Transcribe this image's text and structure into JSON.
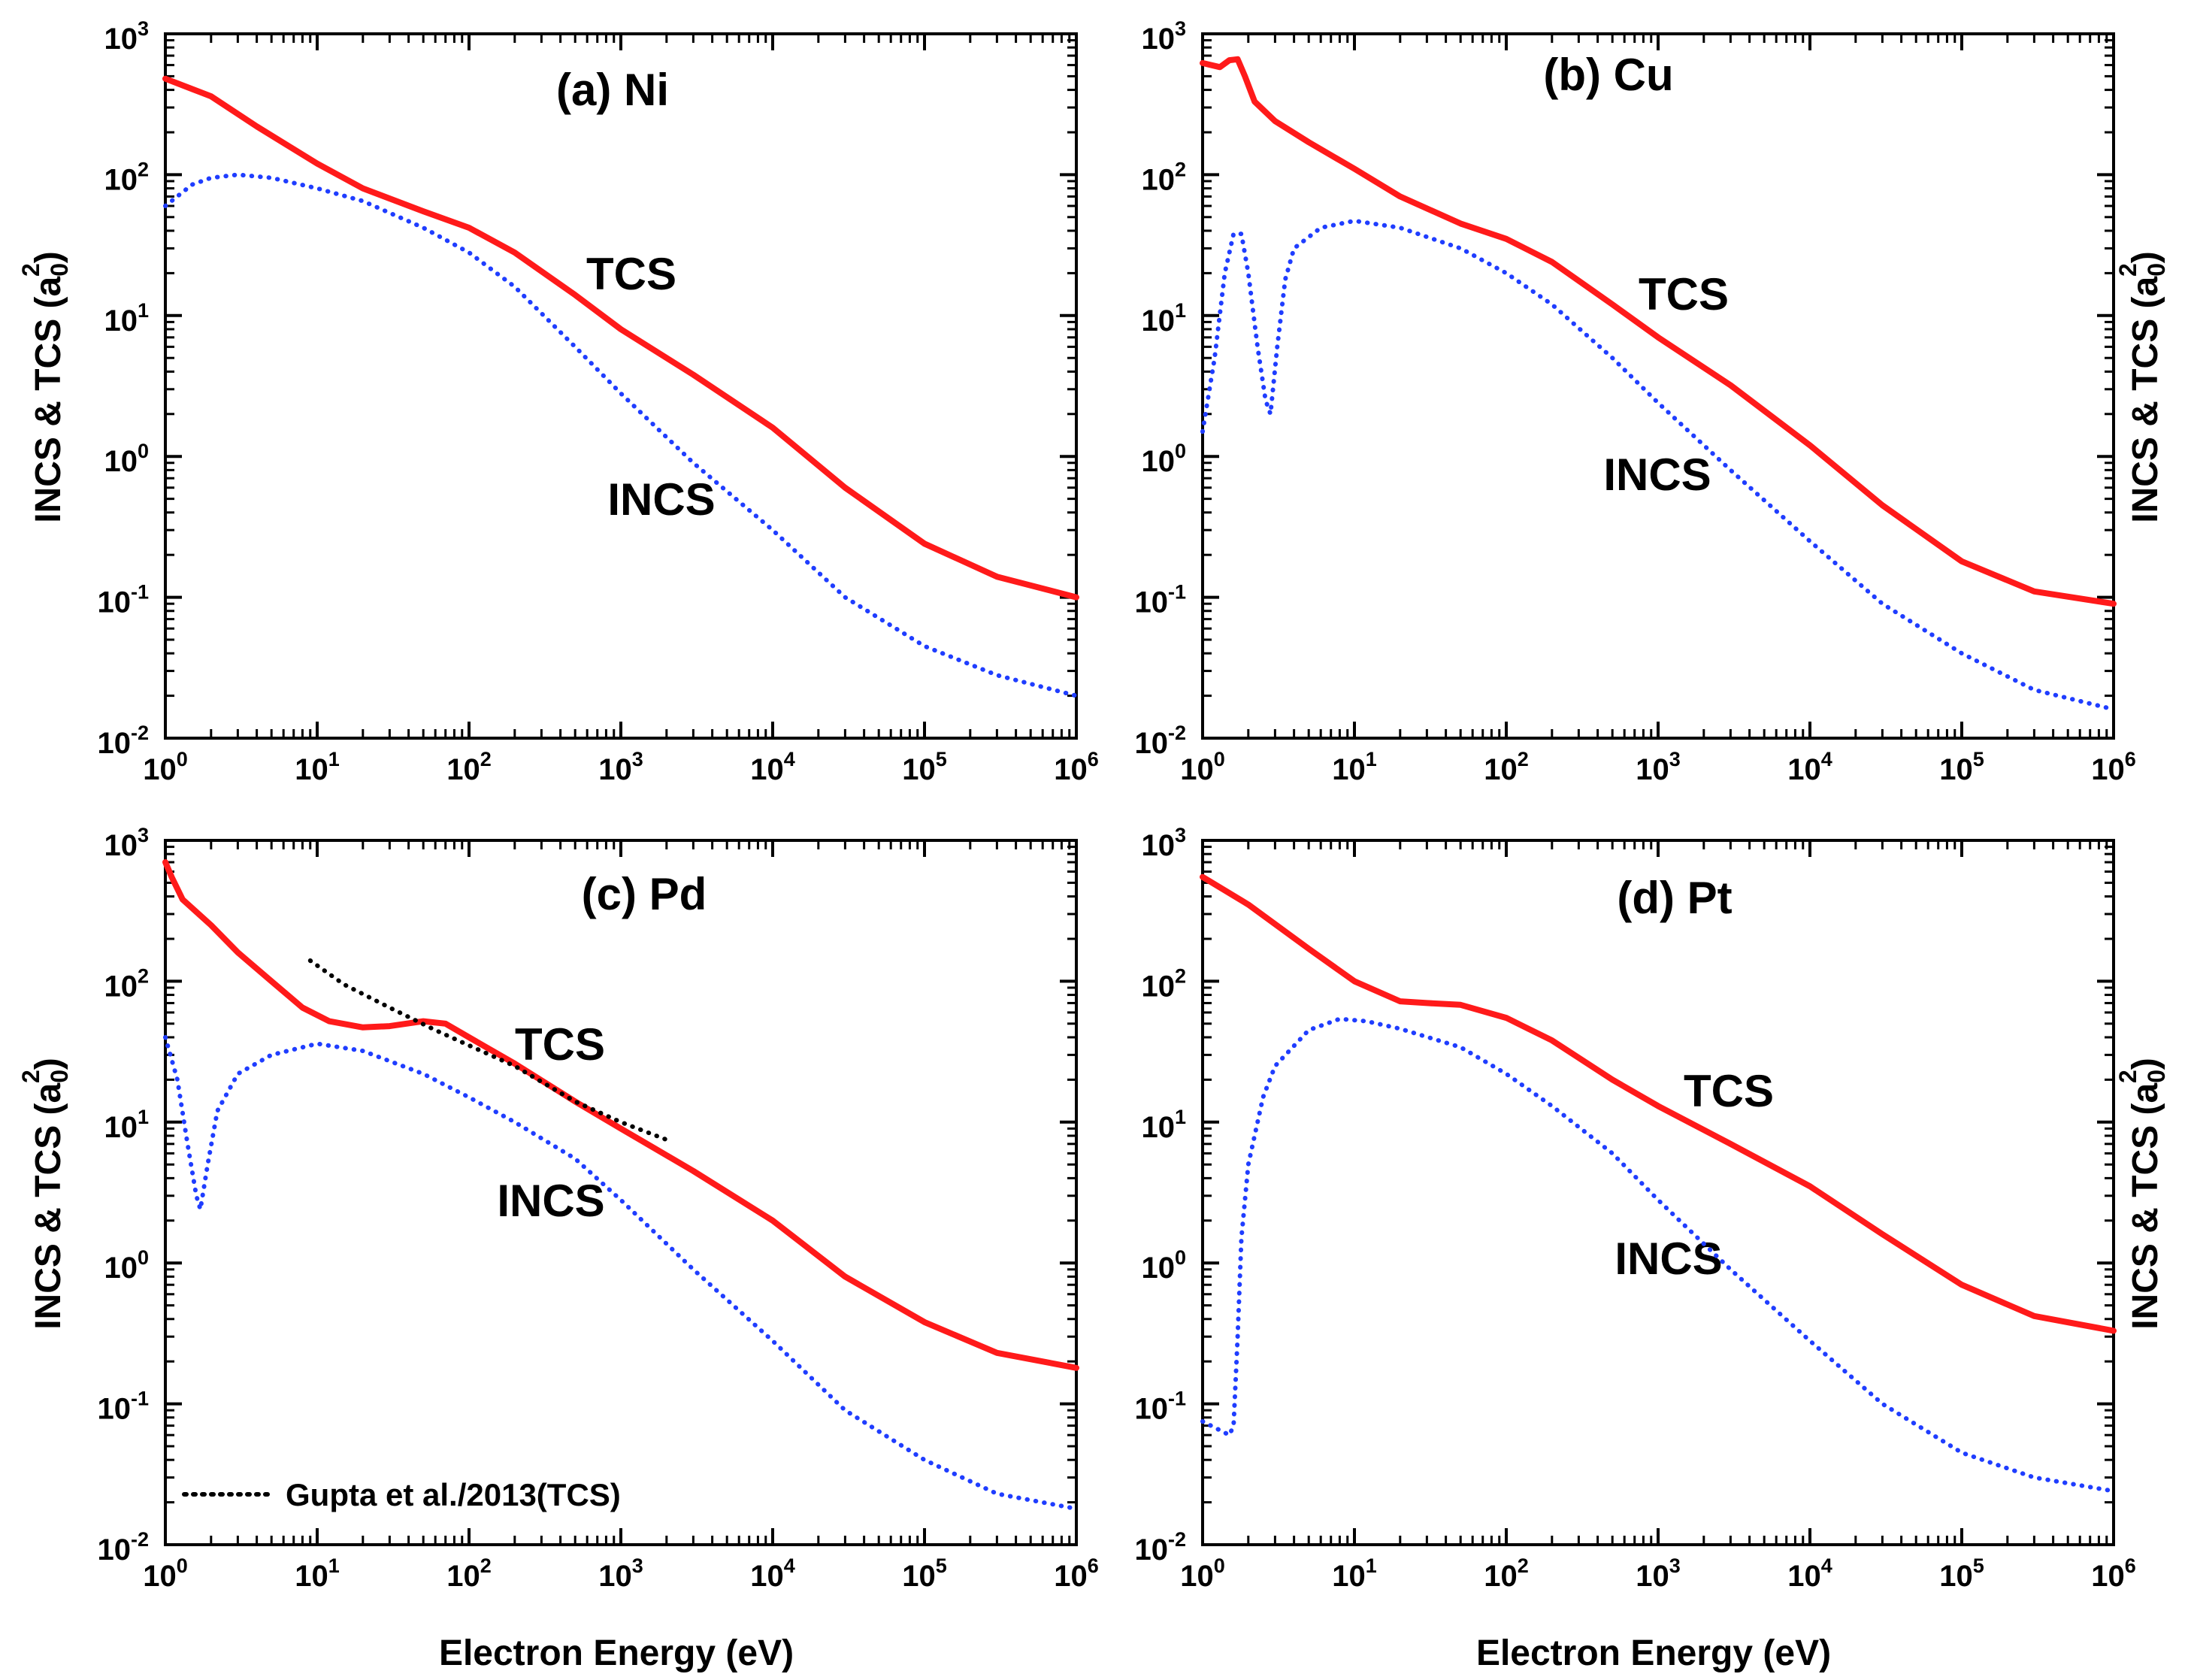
{
  "figure": {
    "x_axis_title": "Electron Energy (eV)",
    "y_axis_title": "INCS & TCS (a",
    "y_axis_title_sub": "0",
    "y_axis_title_sup": "2",
    "y_axis_title_end": ")"
  },
  "chart_data": [
    {
      "type": "line",
      "title": "(a) Ni",
      "xscale": "log",
      "yscale": "log",
      "xlim": [
        1,
        1000000
      ],
      "ylim": [
        0.01,
        1000
      ],
      "xlabel": "Electron Energy (eV)",
      "ylabel": "INCS & TCS (a0^2)",
      "x_ticks": [
        {
          "base": "10",
          "exp": "0"
        },
        {
          "base": "10",
          "exp": "1"
        },
        {
          "base": "10",
          "exp": "2"
        },
        {
          "base": "10",
          "exp": "3"
        },
        {
          "base": "10",
          "exp": "4"
        },
        {
          "base": "10",
          "exp": "5"
        },
        {
          "base": "10",
          "exp": "6"
        }
      ],
      "y_ticks": [
        {
          "base": "10",
          "exp": "-2"
        },
        {
          "base": "10",
          "exp": "-1"
        },
        {
          "base": "10",
          "exp": "0"
        },
        {
          "base": "10",
          "exp": "1"
        },
        {
          "base": "10",
          "exp": "2"
        },
        {
          "base": "10",
          "exp": "3"
        }
      ],
      "series": [
        {
          "name": "TCS",
          "color": "#ff1a1a",
          "style": "solid",
          "label": "TCS",
          "points": [
            [
              1,
              480
            ],
            [
              2,
              360
            ],
            [
              4,
              220
            ],
            [
              10,
              120
            ],
            [
              20,
              80
            ],
            [
              50,
              55
            ],
            [
              100,
              42
            ],
            [
              200,
              28
            ],
            [
              500,
              14
            ],
            [
              1000,
              8
            ],
            [
              3000,
              3.8
            ],
            [
              10000,
              1.6
            ],
            [
              30000,
              0.6
            ],
            [
              100000,
              0.24
            ],
            [
              300000,
              0.14
            ],
            [
              1000000,
              0.1
            ]
          ]
        },
        {
          "name": "INCS",
          "color": "#1f3dff",
          "style": "dotted",
          "label": "INCS",
          "points": [
            [
              1,
              60
            ],
            [
              1.5,
              85
            ],
            [
              2,
              95
            ],
            [
              3,
              100
            ],
            [
              5,
              95
            ],
            [
              10,
              80
            ],
            [
              20,
              65
            ],
            [
              50,
              42
            ],
            [
              100,
              28
            ],
            [
              200,
              16
            ],
            [
              500,
              6
            ],
            [
              1000,
              2.8
            ],
            [
              3000,
              0.9
            ],
            [
              10000,
              0.3
            ],
            [
              30000,
              0.1
            ],
            [
              100000,
              0.045
            ],
            [
              300000,
              0.028
            ],
            [
              1000000,
              0.02
            ]
          ]
        }
      ]
    },
    {
      "type": "line",
      "title": "(b) Cu",
      "xscale": "log",
      "yscale": "log",
      "xlim": [
        1,
        1000000
      ],
      "ylim": [
        0.01,
        1000
      ],
      "xlabel": "Electron Energy (eV)",
      "ylabel": "INCS & TCS (a0^2)",
      "x_ticks": [
        {
          "base": "10",
          "exp": "0"
        },
        {
          "base": "10",
          "exp": "1"
        },
        {
          "base": "10",
          "exp": "2"
        },
        {
          "base": "10",
          "exp": "3"
        },
        {
          "base": "10",
          "exp": "4"
        },
        {
          "base": "10",
          "exp": "5"
        },
        {
          "base": "10",
          "exp": "6"
        }
      ],
      "y_ticks": [
        {
          "base": "10",
          "exp": "-2"
        },
        {
          "base": "10",
          "exp": "-1"
        },
        {
          "base": "10",
          "exp": "0"
        },
        {
          "base": "10",
          "exp": "1"
        },
        {
          "base": "10",
          "exp": "2"
        },
        {
          "base": "10",
          "exp": "3"
        }
      ],
      "series": [
        {
          "name": "TCS",
          "color": "#ff1a1a",
          "style": "solid",
          "label": "TCS",
          "points": [
            [
              1,
              620
            ],
            [
              1.3,
              580
            ],
            [
              1.5,
              650
            ],
            [
              1.7,
              660
            ],
            [
              1.9,
              500
            ],
            [
              2.2,
              330
            ],
            [
              3,
              240
            ],
            [
              5,
              170
            ],
            [
              10,
              110
            ],
            [
              20,
              70
            ],
            [
              50,
              45
            ],
            [
              100,
              35
            ],
            [
              200,
              24
            ],
            [
              500,
              12
            ],
            [
              1000,
              7
            ],
            [
              3000,
              3.2
            ],
            [
              10000,
              1.2
            ],
            [
              30000,
              0.45
            ],
            [
              100000,
              0.18
            ],
            [
              300000,
              0.11
            ],
            [
              1000000,
              0.09
            ]
          ]
        },
        {
          "name": "INCS",
          "color": "#1f3dff",
          "style": "dotted",
          "label": "INCS",
          "points": [
            [
              1,
              1.5
            ],
            [
              1.2,
              5
            ],
            [
              1.4,
              20
            ],
            [
              1.6,
              38
            ],
            [
              1.8,
              38
            ],
            [
              2,
              20
            ],
            [
              2.3,
              6
            ],
            [
              2.6,
              2.5
            ],
            [
              2.8,
              2
            ],
            [
              3.1,
              6
            ],
            [
              3.5,
              18
            ],
            [
              4,
              30
            ],
            [
              6,
              42
            ],
            [
              10,
              47
            ],
            [
              20,
              42
            ],
            [
              50,
              30
            ],
            [
              100,
              20
            ],
            [
              200,
              12
            ],
            [
              500,
              5
            ],
            [
              1000,
              2.4
            ],
            [
              3000,
              0.8
            ],
            [
              10000,
              0.25
            ],
            [
              30000,
              0.09
            ],
            [
              100000,
              0.04
            ],
            [
              300000,
              0.022
            ],
            [
              1000000,
              0.016
            ]
          ]
        }
      ]
    },
    {
      "type": "line",
      "title": "(c) Pd",
      "xscale": "log",
      "yscale": "log",
      "xlim": [
        1,
        1000000
      ],
      "ylim": [
        0.01,
        1000
      ],
      "xlabel": "Electron Energy (eV)",
      "ylabel": "INCS & TCS (a0^2)",
      "x_ticks": [
        {
          "base": "10",
          "exp": "0"
        },
        {
          "base": "10",
          "exp": "1"
        },
        {
          "base": "10",
          "exp": "2"
        },
        {
          "base": "10",
          "exp": "3"
        },
        {
          "base": "10",
          "exp": "4"
        },
        {
          "base": "10",
          "exp": "5"
        },
        {
          "base": "10",
          "exp": "6"
        }
      ],
      "y_ticks": [
        {
          "base": "10",
          "exp": "-2"
        },
        {
          "base": "10",
          "exp": "-1"
        },
        {
          "base": "10",
          "exp": "0"
        },
        {
          "base": "10",
          "exp": "1"
        },
        {
          "base": "10",
          "exp": "2"
        },
        {
          "base": "10",
          "exp": "3"
        }
      ],
      "legend": {
        "label": "Gupta et al./2013(TCS)",
        "placement": "bottom-left"
      },
      "series": [
        {
          "name": "TCS",
          "color": "#ff1a1a",
          "style": "solid",
          "label": "TCS",
          "points": [
            [
              1,
              700
            ],
            [
              1.1,
              550
            ],
            [
              1.3,
              380
            ],
            [
              2,
              250
            ],
            [
              3,
              160
            ],
            [
              5,
              100
            ],
            [
              8,
              65
            ],
            [
              12,
              52
            ],
            [
              20,
              47
            ],
            [
              30,
              48
            ],
            [
              50,
              52
            ],
            [
              70,
              50
            ],
            [
              100,
              40
            ],
            [
              200,
              26
            ],
            [
              500,
              14
            ],
            [
              1000,
              9
            ],
            [
              3000,
              4.5
            ],
            [
              10000,
              2
            ],
            [
              30000,
              0.8
            ],
            [
              100000,
              0.38
            ],
            [
              300000,
              0.23
            ],
            [
              1000000,
              0.18
            ]
          ]
        },
        {
          "name": "INCS",
          "color": "#1f3dff",
          "style": "dotted",
          "label": "INCS",
          "points": [
            [
              1,
              40
            ],
            [
              1.2,
              20
            ],
            [
              1.4,
              7
            ],
            [
              1.6,
              3
            ],
            [
              1.7,
              2.4
            ],
            [
              1.9,
              5
            ],
            [
              2.2,
              12
            ],
            [
              3,
              22
            ],
            [
              5,
              30
            ],
            [
              10,
              36
            ],
            [
              20,
              32
            ],
            [
              50,
              22
            ],
            [
              100,
              15
            ],
            [
              200,
              10
            ],
            [
              500,
              5.5
            ],
            [
              1000,
              2.8
            ],
            [
              3000,
              0.9
            ],
            [
              10000,
              0.28
            ],
            [
              30000,
              0.09
            ],
            [
              100000,
              0.04
            ],
            [
              300000,
              0.023
            ],
            [
              1000000,
              0.018
            ]
          ]
        },
        {
          "name": "Gupta et al./2013(TCS)",
          "color": "#000000",
          "style": "dotted",
          "label": "Gupta et al./2013(TCS)",
          "points": [
            [
              9,
              140
            ],
            [
              15,
              95
            ],
            [
              30,
              65
            ],
            [
              60,
              45
            ],
            [
              100,
              35
            ],
            [
              200,
              25
            ],
            [
              500,
              14
            ],
            [
              1000,
              10
            ],
            [
              2000,
              7.5
            ]
          ]
        }
      ]
    },
    {
      "type": "line",
      "title": "(d) Pt",
      "xscale": "log",
      "yscale": "log",
      "xlim": [
        1,
        1000000
      ],
      "ylim": [
        0.01,
        1000
      ],
      "xlabel": "Electron Energy (eV)",
      "ylabel": "INCS & TCS (a0^2)",
      "x_ticks": [
        {
          "base": "10",
          "exp": "0"
        },
        {
          "base": "10",
          "exp": "1"
        },
        {
          "base": "10",
          "exp": "2"
        },
        {
          "base": "10",
          "exp": "3"
        },
        {
          "base": "10",
          "exp": "4"
        },
        {
          "base": "10",
          "exp": "5"
        },
        {
          "base": "10",
          "exp": "6"
        }
      ],
      "y_ticks": [
        {
          "base": "10",
          "exp": "-2"
        },
        {
          "base": "10",
          "exp": "-1"
        },
        {
          "base": "10",
          "exp": "0"
        },
        {
          "base": "10",
          "exp": "1"
        },
        {
          "base": "10",
          "exp": "2"
        },
        {
          "base": "10",
          "exp": "3"
        }
      ],
      "series": [
        {
          "name": "TCS",
          "color": "#ff1a1a",
          "style": "solid",
          "label": "TCS",
          "points": [
            [
              1,
              550
            ],
            [
              2,
              350
            ],
            [
              5,
              170
            ],
            [
              10,
              100
            ],
            [
              20,
              72
            ],
            [
              30,
              70
            ],
            [
              50,
              68
            ],
            [
              100,
              55
            ],
            [
              200,
              38
            ],
            [
              500,
              20
            ],
            [
              1000,
              13
            ],
            [
              3000,
              7
            ],
            [
              10000,
              3.5
            ],
            [
              30000,
              1.6
            ],
            [
              100000,
              0.7
            ],
            [
              300000,
              0.42
            ],
            [
              1000000,
              0.33
            ]
          ]
        },
        {
          "name": "INCS",
          "color": "#1f3dff",
          "style": "dotted",
          "label": "INCS",
          "points": [
            [
              1,
              0.075
            ],
            [
              1.3,
              0.065
            ],
            [
              1.5,
              0.06
            ],
            [
              1.6,
              0.07
            ],
            [
              1.7,
              0.3
            ],
            [
              1.8,
              1.5
            ],
            [
              2,
              5
            ],
            [
              2.5,
              15
            ],
            [
              3,
              25
            ],
            [
              5,
              45
            ],
            [
              8,
              54
            ],
            [
              12,
              52
            ],
            [
              20,
              46
            ],
            [
              50,
              34
            ],
            [
              100,
              22
            ],
            [
              200,
              13
            ],
            [
              500,
              6
            ],
            [
              1000,
              2.8
            ],
            [
              3000,
              0.9
            ],
            [
              10000,
              0.28
            ],
            [
              30000,
              0.1
            ],
            [
              100000,
              0.045
            ],
            [
              300000,
              0.03
            ],
            [
              1000000,
              0.024
            ]
          ]
        }
      ]
    }
  ]
}
